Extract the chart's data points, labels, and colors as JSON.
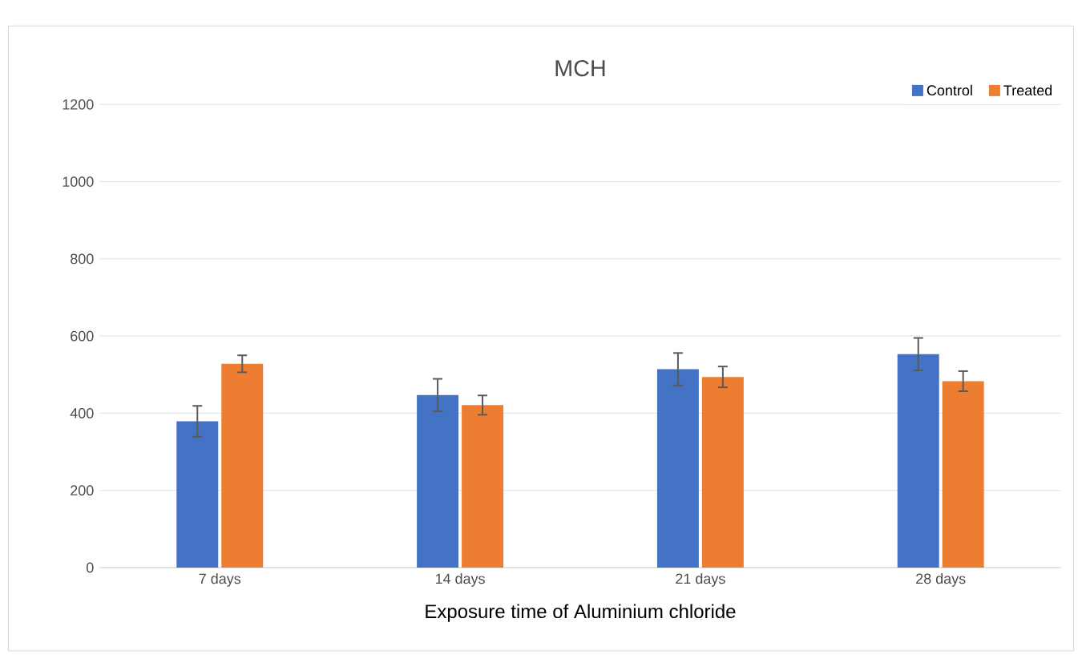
{
  "chart_data": {
    "type": "bar",
    "title": "MCH",
    "xlabel": "Exposure time of Aluminium chloride",
    "categories": [
      "7 days",
      "14 days",
      "21 days",
      "28 days"
    ],
    "series": [
      {
        "name": "Control",
        "color": "#4472c4",
        "values": [
          379,
          447,
          514,
          553
        ],
        "errors": [
          40,
          42,
          42,
          42
        ]
      },
      {
        "name": "Treated",
        "color": "#ed7d31",
        "values": [
          528,
          421,
          494,
          483
        ],
        "errors": [
          22,
          25,
          27,
          26
        ]
      }
    ],
    "ylim": [
      0,
      1200
    ],
    "yticks": [
      0,
      200,
      400,
      600,
      800,
      1000,
      1200
    ],
    "grid": "y",
    "legend": "top right"
  }
}
